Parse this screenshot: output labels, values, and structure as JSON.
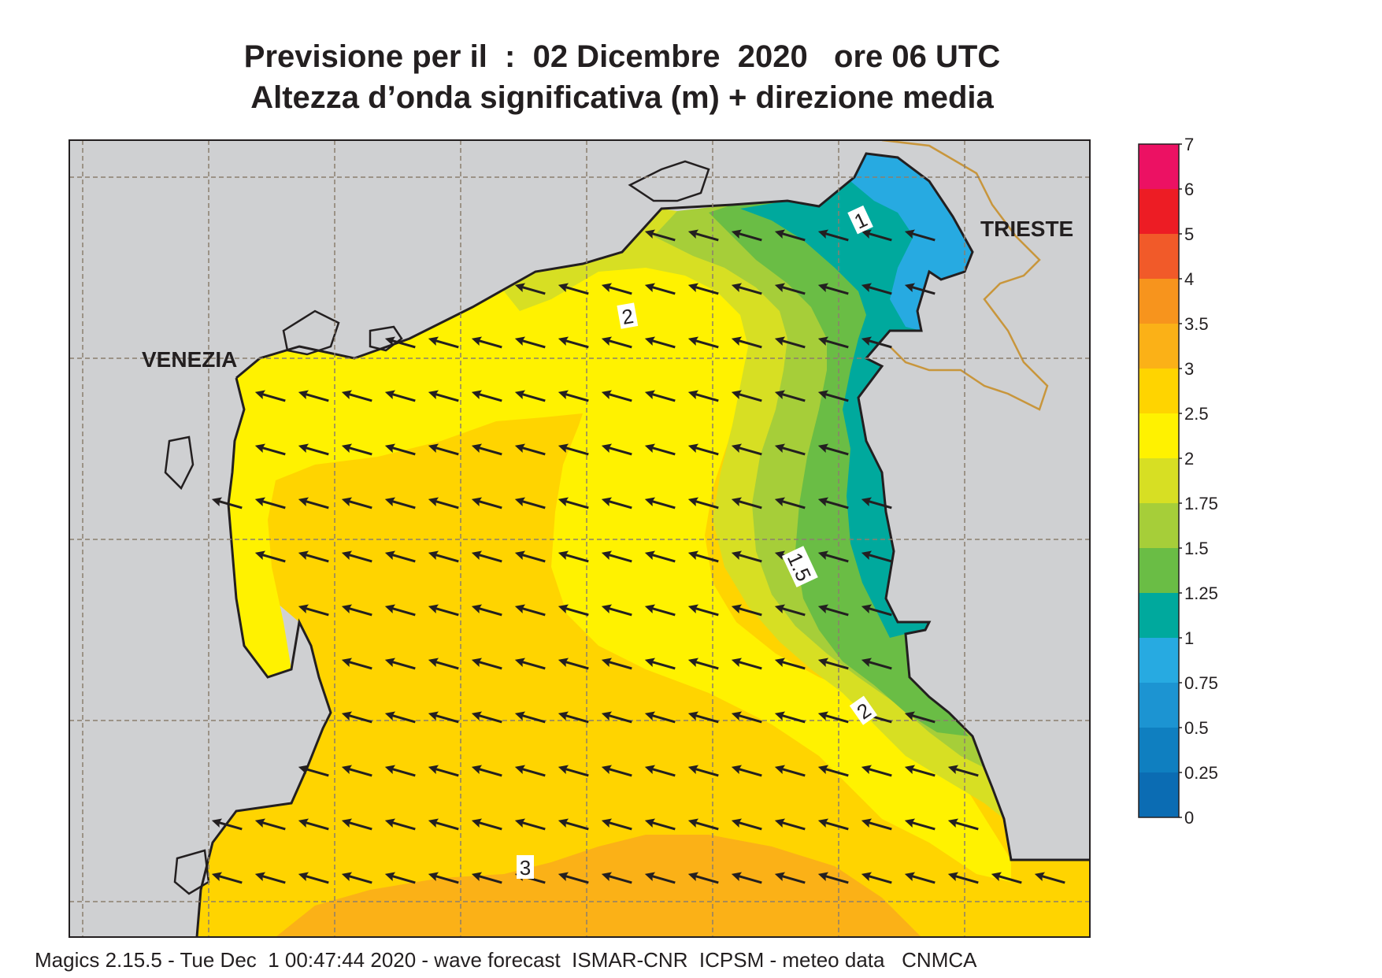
{
  "title": {
    "line1": "Previsione per il  :  02 Dicembre  2020   ore 06 UTC",
    "line2": "Altezza d’onda significativa (m) + direzione media"
  },
  "map": {
    "region": "northern Adriatic Sea",
    "place_labels": [
      "VENEZIA",
      "TRIESTE"
    ],
    "contour_labels": [
      "1",
      "2",
      "1.5",
      "2",
      "3"
    ],
    "colors": {
      "land": "#cfd0d2",
      "coast": "#231f20",
      "border": "#c8963c",
      "grid": "#8c7f6e"
    },
    "arrows": {
      "direction": "WSW",
      "color": "#231f20"
    }
  },
  "legend": {
    "labels": [
      "7",
      "6",
      "5",
      "4",
      "3.5",
      "3",
      "2.5",
      "2",
      "1.75",
      "1.5",
      "1.25",
      "1",
      "0.75",
      "0.5",
      "0.25",
      "0"
    ],
    "bands": [
      {
        "from": "6",
        "to": "7",
        "color": "#ec1163"
      },
      {
        "from": "5",
        "to": "6",
        "color": "#ed1c24"
      },
      {
        "from": "4",
        "to": "5",
        "color": "#f15a29"
      },
      {
        "from": "3.5",
        "to": "4",
        "color": "#f7941d"
      },
      {
        "from": "3",
        "to": "3.5",
        "color": "#fbb117"
      },
      {
        "from": "2.5",
        "to": "3",
        "color": "#ffd400"
      },
      {
        "from": "2",
        "to": "2.5",
        "color": "#fff200"
      },
      {
        "from": "1.75",
        "to": "2",
        "color": "#d7df23"
      },
      {
        "from": "1.5",
        "to": "1.75",
        "color": "#a6ce39"
      },
      {
        "from": "1.25",
        "to": "1.5",
        "color": "#6abd45"
      },
      {
        "from": "1",
        "to": "1.25",
        "color": "#00a99d"
      },
      {
        "from": "0.75",
        "to": "1",
        "color": "#27aae1"
      },
      {
        "from": "0.5",
        "to": "0.75",
        "color": "#1c94d2"
      },
      {
        "from": "0.25",
        "to": "0.5",
        "color": "#0f7fc0"
      },
      {
        "from": "0",
        "to": "0.25",
        "color": "#0b6cb3"
      }
    ]
  },
  "footer": "Magics 2.15.5 - Tue Dec  1 00:47:44 2020 - wave forecast  ISMAR-CNR  ICPSM - meteo data   CNMCA"
}
